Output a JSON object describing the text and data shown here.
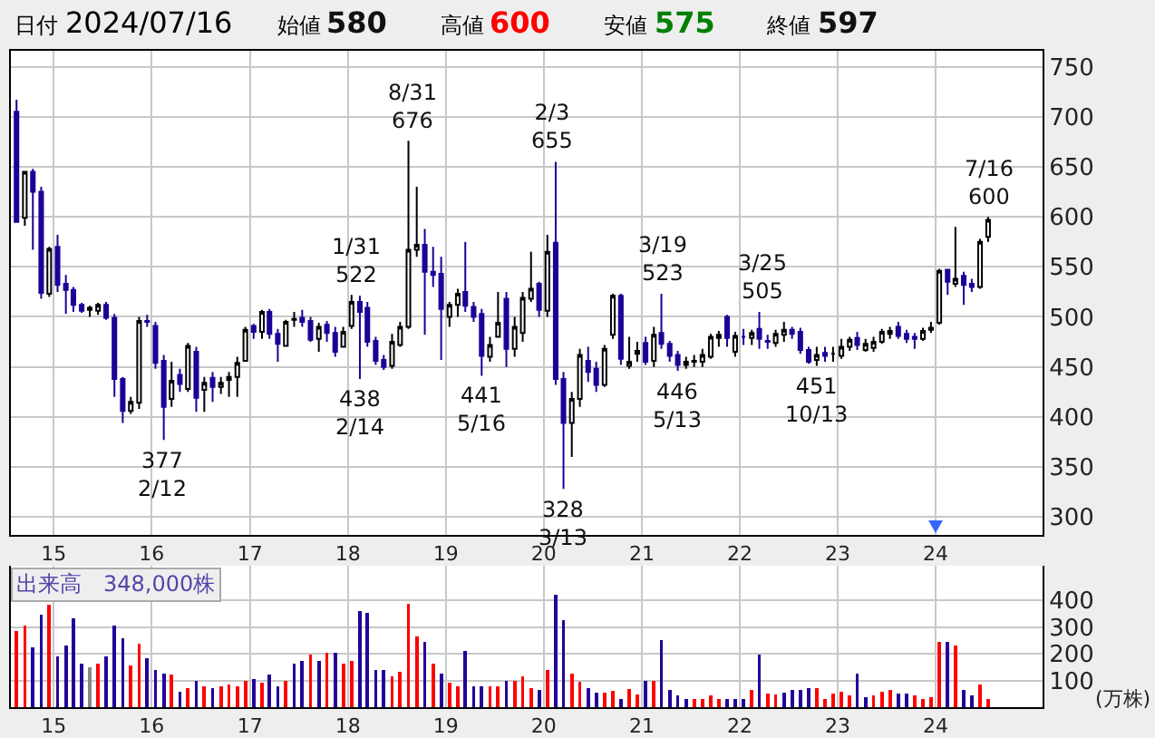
{
  "chart_data": [
    {
      "type": "candlestick",
      "annotations": [
        "日付",
        "2024/07/16",
        "始値",
        "580",
        "高値",
        "600",
        "安値",
        "575",
        "終値",
        "597",
        {
          "text": "8/31\n676",
          "x": "2018-08-31",
          "y": 676
        },
        {
          "text": "2/3\n655",
          "x": "2020-02-03",
          "y": 655
        },
        {
          "text": "1/31\n522",
          "x": "2018-01-31",
          "y": 522
        },
        {
          "text": "3/19\n523",
          "x": "2021-03-19",
          "y": 523
        },
        {
          "text": "3/25\n505",
          "x": "2022-03-25",
          "y": 505
        },
        {
          "text": "7/16\n600",
          "x": "2024-07-16",
          "y": 600
        },
        {
          "text": "377\n2/12",
          "x": "2016-02-12",
          "y": 377
        },
        {
          "text": "438\n2/14",
          "x": "2018-02-14",
          "y": 438
        },
        {
          "text": "441\n5/16",
          "x": "2019-05-16",
          "y": 441
        },
        {
          "text": "328\n3/13",
          "x": "2020-03-13",
          "y": 328
        },
        {
          "text": "446\n5/13",
          "x": "2021-05-13",
          "y": 446
        },
        {
          "text": "451\n10/13",
          "x": "2022-10-13",
          "y": 451
        }
      ],
      "x": [
        "2014-08-15",
        "2014-09-15",
        "2014-10-15",
        "2014-11-15",
        "2014-12-15",
        "2015-01-15",
        "2015-02-15",
        "2015-03-15",
        "2015-04-15",
        "2015-05-15",
        "2015-06-15",
        "2015-07-15",
        "2015-08-15",
        "2015-09-15",
        "2015-10-15",
        "2015-11-15",
        "2015-12-15",
        "2016-01-15",
        "2016-02-15",
        "2016-03-15",
        "2016-04-15",
        "2016-05-15",
        "2016-06-15",
        "2016-07-15",
        "2016-08-15",
        "2016-09-15",
        "2016-10-15",
        "2016-11-15",
        "2016-12-15",
        "2017-01-15",
        "2017-02-15",
        "2017-03-15",
        "2017-04-15",
        "2017-05-15",
        "2017-06-15",
        "2017-07-15",
        "2017-08-15",
        "2017-09-15",
        "2017-10-15",
        "2017-11-15",
        "2017-12-15",
        "2018-01-15",
        "2018-02-15",
        "2018-03-15",
        "2018-04-15",
        "2018-05-15",
        "2018-06-15",
        "2018-07-15",
        "2018-08-15",
        "2018-09-15",
        "2018-10-15",
        "2018-11-15",
        "2018-12-15",
        "2019-01-15",
        "2019-02-15",
        "2019-03-15",
        "2019-04-15",
        "2019-05-15",
        "2019-06-15",
        "2019-07-15",
        "2019-08-15",
        "2019-09-15",
        "2019-10-15",
        "2019-11-15",
        "2019-12-15",
        "2020-01-15",
        "2020-02-15",
        "2020-03-15",
        "2020-04-15",
        "2020-05-15",
        "2020-06-15",
        "2020-07-15",
        "2020-08-15",
        "2020-09-15",
        "2020-10-15",
        "2020-11-15",
        "2020-12-15",
        "2021-01-15",
        "2021-02-15",
        "2021-03-15",
        "2021-04-15",
        "2021-05-15",
        "2021-06-15",
        "2021-07-15",
        "2021-08-15",
        "2021-09-15",
        "2021-10-15",
        "2021-11-15",
        "2021-12-15",
        "2022-01-15",
        "2022-02-15",
        "2022-03-15",
        "2022-04-15",
        "2022-05-15",
        "2022-06-15",
        "2022-07-15",
        "2022-08-15",
        "2022-09-15",
        "2022-10-15",
        "2022-11-15",
        "2022-12-15",
        "2023-01-15",
        "2023-02-15",
        "2023-03-15",
        "2023-04-15",
        "2023-05-15",
        "2023-06-15",
        "2023-07-15",
        "2023-08-15",
        "2023-09-15",
        "2023-10-15",
        "2023-11-15",
        "2023-12-15",
        "2024-01-15",
        "2024-02-15",
        "2024-03-15",
        "2024-04-15",
        "2024-05-15",
        "2024-06-15",
        "2024-07-15"
      ],
      "ohlc": [
        [
          705,
          717,
          594,
          595
        ],
        [
          599,
          646,
          591,
          645
        ],
        [
          645,
          648,
          567,
          625
        ],
        [
          625,
          630,
          518,
          524
        ],
        [
          523,
          570,
          520,
          568
        ],
        [
          570,
          582,
          525,
          532
        ],
        [
          533,
          542,
          503,
          527
        ],
        [
          527,
          530,
          505,
          512
        ],
        [
          512,
          514,
          504,
          506
        ],
        [
          507,
          511,
          500,
          509
        ],
        [
          506,
          514,
          502,
          512
        ],
        [
          512,
          515,
          497,
          499
        ],
        [
          499,
          503,
          420,
          438
        ],
        [
          438,
          440,
          394,
          406
        ],
        [
          406,
          420,
          403,
          415
        ],
        [
          414,
          500,
          408,
          496
        ],
        [
          496,
          502,
          490,
          495
        ],
        [
          491,
          495,
          448,
          454
        ],
        [
          456,
          462,
          377,
          410
        ],
        [
          418,
          455,
          410,
          436
        ],
        [
          442,
          448,
          425,
          433
        ],
        [
          428,
          474,
          425,
          471
        ],
        [
          465,
          470,
          405,
          419
        ],
        [
          427,
          440,
          405,
          434
        ],
        [
          439,
          445,
          415,
          430
        ],
        [
          430,
          440,
          423,
          434
        ],
        [
          437,
          445,
          420,
          440
        ],
        [
          440,
          460,
          420,
          454
        ],
        [
          456,
          490,
          455,
          487
        ],
        [
          491,
          493,
          478,
          485
        ],
        [
          485,
          507,
          478,
          505
        ],
        [
          505,
          508,
          478,
          483
        ],
        [
          483,
          488,
          455,
          473
        ],
        [
          471,
          497,
          470,
          495
        ],
        [
          497,
          505,
          490,
          498
        ],
        [
          499,
          507,
          490,
          495
        ],
        [
          496,
          500,
          475,
          477
        ],
        [
          478,
          494,
          465,
          490
        ],
        [
          492,
          496,
          475,
          484
        ],
        [
          484,
          490,
          460,
          465
        ],
        [
          470,
          490,
          470,
          485
        ],
        [
          491,
          522,
          488,
          515
        ],
        [
          515,
          521,
          438,
          505
        ],
        [
          509,
          515,
          470,
          475
        ],
        [
          476,
          480,
          452,
          456
        ],
        [
          457,
          462,
          447,
          450
        ],
        [
          451,
          483,
          448,
          475
        ],
        [
          472,
          495,
          470,
          490
        ],
        [
          490,
          676,
          488,
          567
        ],
        [
          567,
          630,
          560,
          572
        ],
        [
          572,
          588,
          482,
          545
        ],
        [
          545,
          570,
          530,
          542
        ],
        [
          543,
          560,
          457,
          508
        ],
        [
          500,
          515,
          490,
          512
        ],
        [
          512,
          528,
          500,
          523
        ],
        [
          525,
          575,
          505,
          511
        ],
        [
          510,
          515,
          495,
          500
        ],
        [
          503,
          508,
          441,
          461
        ],
        [
          460,
          480,
          455,
          472
        ],
        [
          480,
          525,
          480,
          494
        ],
        [
          518,
          525,
          450,
          468
        ],
        [
          468,
          500,
          460,
          490
        ],
        [
          484,
          525,
          475,
          519
        ],
        [
          518,
          565,
          515,
          528
        ],
        [
          533,
          535,
          500,
          507
        ],
        [
          506,
          582,
          500,
          565
        ],
        [
          574,
          655,
          432,
          438
        ],
        [
          438,
          445,
          328,
          394
        ],
        [
          394,
          425,
          360,
          418
        ],
        [
          418,
          468,
          410,
          462
        ],
        [
          456,
          470,
          435,
          445
        ],
        [
          448,
          455,
          425,
          432
        ],
        [
          432,
          472,
          430,
          468
        ],
        [
          482,
          523,
          478,
          521
        ],
        [
          521,
          523,
          452,
          458
        ],
        [
          451,
          480,
          448,
          455
        ],
        [
          463,
          475,
          455,
          466
        ],
        [
          474,
          480,
          452,
          455
        ],
        [
          456,
          490,
          450,
          482
        ],
        [
          484,
          523,
          468,
          473
        ],
        [
          473,
          476,
          455,
          461
        ],
        [
          462,
          466,
          446,
          452
        ],
        [
          452,
          460,
          448,
          455
        ],
        [
          455,
          462,
          450,
          456
        ],
        [
          455,
          468,
          450,
          462
        ],
        [
          460,
          483,
          458,
          480
        ],
        [
          479,
          486,
          470,
          482
        ],
        [
          500,
          502,
          470,
          479
        ],
        [
          465,
          485,
          460,
          481
        ],
        [
          480,
          488,
          472,
          480
        ],
        [
          479,
          487,
          472,
          484
        ],
        [
          488,
          505,
          468,
          478
        ],
        [
          476,
          482,
          468,
          475
        ],
        [
          474,
          487,
          470,
          483
        ],
        [
          482,
          495,
          475,
          487
        ],
        [
          487,
          490,
          478,
          483
        ],
        [
          485,
          489,
          463,
          467
        ],
        [
          467,
          470,
          453,
          455
        ],
        [
          457,
          470,
          451,
          462
        ],
        [
          464,
          470,
          455,
          461
        ],
        [
          463,
          470,
          455,
          463
        ],
        [
          461,
          478,
          458,
          470
        ],
        [
          470,
          480,
          466,
          477
        ],
        [
          479,
          485,
          467,
          472
        ],
        [
          467,
          478,
          465,
          473
        ],
        [
          469,
          480,
          465,
          475
        ],
        [
          475,
          488,
          473,
          485
        ],
        [
          483,
          490,
          478,
          486
        ],
        [
          490,
          495,
          478,
          481
        ],
        [
          483,
          487,
          474,
          478
        ],
        [
          480,
          484,
          468,
          478
        ],
        [
          478,
          489,
          476,
          486
        ],
        [
          487,
          495,
          484,
          489
        ],
        [
          494,
          548,
          492,
          546
        ],
        [
          547,
          548,
          522,
          535
        ],
        [
          533,
          590,
          530,
          538
        ],
        [
          541,
          545,
          512,
          532
        ],
        [
          533,
          538,
          525,
          530
        ],
        [
          530,
          578,
          528,
          575
        ],
        [
          580,
          600,
          575,
          597
        ]
      ],
      "xlim": [
        "2014-07-25",
        "2025-02-03"
      ],
      "xticks": [
        {
          "value": "2015-01-01",
          "label": "15"
        },
        {
          "value": "2016-01-01",
          "label": "16"
        },
        {
          "value": "2017-01-01",
          "label": "17"
        },
        {
          "value": "2018-01-01",
          "label": "18"
        },
        {
          "value": "2019-01-01",
          "label": "19"
        },
        {
          "value": "2020-01-01",
          "label": "20"
        },
        {
          "value": "2021-01-01",
          "label": "21"
        },
        {
          "value": "2022-01-01",
          "label": "22"
        },
        {
          "value": "2023-01-01",
          "label": "23"
        },
        {
          "value": "2024-01-01",
          "label": "24"
        }
      ],
      "ylim": [
        282,
        766
      ],
      "yticks": [
        300,
        350,
        400,
        450,
        500,
        550,
        600,
        650,
        700,
        750
      ],
      "grid": true
    },
    {
      "type": "bar",
      "annotations": [
        "出来高　348,000株"
      ],
      "ylabel": "(万株)",
      "x": [
        "2014-08-15",
        "2014-09-15",
        "2014-10-15",
        "2014-11-15",
        "2014-12-15",
        "2015-01-15",
        "2015-02-15",
        "2015-03-15",
        "2015-04-15",
        "2015-05-15",
        "2015-06-15",
        "2015-07-15",
        "2015-08-15",
        "2015-09-15",
        "2015-10-15",
        "2015-11-15",
        "2015-12-15",
        "2016-01-15",
        "2016-02-15",
        "2016-03-15",
        "2016-04-15",
        "2016-05-15",
        "2016-06-15",
        "2016-07-15",
        "2016-08-15",
        "2016-09-15",
        "2016-10-15",
        "2016-11-15",
        "2016-12-15",
        "2017-01-15",
        "2017-02-15",
        "2017-03-15",
        "2017-04-15",
        "2017-05-15",
        "2017-06-15",
        "2017-07-15",
        "2017-08-15",
        "2017-09-15",
        "2017-10-15",
        "2017-11-15",
        "2017-12-15",
        "2018-01-15",
        "2018-02-15",
        "2018-03-15",
        "2018-04-15",
        "2018-05-15",
        "2018-06-15",
        "2018-07-15",
        "2018-08-15",
        "2018-09-15",
        "2018-10-15",
        "2018-11-15",
        "2018-12-15",
        "2019-01-15",
        "2019-02-15",
        "2019-03-15",
        "2019-04-15",
        "2019-05-15",
        "2019-06-15",
        "2019-07-15",
        "2019-08-15",
        "2019-09-15",
        "2019-10-15",
        "2019-11-15",
        "2019-12-15",
        "2020-01-15",
        "2020-02-15",
        "2020-03-15",
        "2020-04-15",
        "2020-05-15",
        "2020-06-15",
        "2020-07-15",
        "2020-08-15",
        "2020-09-15",
        "2020-10-15",
        "2020-11-15",
        "2020-12-15",
        "2021-01-15",
        "2021-02-15",
        "2021-03-15",
        "2021-04-15",
        "2021-05-15",
        "2021-06-15",
        "2021-07-15",
        "2021-08-15",
        "2021-09-15",
        "2021-10-15",
        "2021-11-15",
        "2021-12-15",
        "2022-01-15",
        "2022-02-15",
        "2022-03-15",
        "2022-04-15",
        "2022-05-15",
        "2022-06-15",
        "2022-07-15",
        "2022-08-15",
        "2022-09-15",
        "2022-10-15",
        "2022-11-15",
        "2022-12-15",
        "2023-01-15",
        "2023-02-15",
        "2023-03-15",
        "2023-04-15",
        "2023-05-15",
        "2023-06-15",
        "2023-07-15",
        "2023-08-15",
        "2023-09-15",
        "2023-10-15",
        "2023-11-15",
        "2023-12-15",
        "2024-01-15",
        "2024-02-15",
        "2024-03-15",
        "2024-04-15",
        "2024-05-15",
        "2024-06-15",
        "2024-07-15"
      ],
      "values": [
        285,
        306,
        224,
        347,
        384,
        191,
        230,
        333,
        162,
        148,
        162,
        189,
        306,
        258,
        155,
        237,
        182,
        141,
        127,
        123,
        59,
        72,
        100,
        79,
        72,
        79,
        86,
        79,
        100,
        107,
        93,
        121,
        79,
        100,
        162,
        175,
        196,
        175,
        203,
        203,
        162,
        175,
        361,
        354,
        141,
        141,
        114,
        134,
        388,
        265,
        244,
        162,
        127,
        93,
        79,
        210,
        79,
        79,
        79,
        79,
        100,
        100,
        114,
        72,
        66,
        141,
        423,
        327,
        127,
        95,
        72,
        54,
        54,
        61,
        31,
        68,
        47,
        100,
        100,
        251,
        66,
        45,
        31,
        31,
        31,
        45,
        31,
        31,
        31,
        31,
        66,
        198,
        52,
        47,
        54,
        66,
        66,
        72,
        72,
        31,
        52,
        59,
        45,
        127,
        38,
        45,
        59,
        66,
        52,
        52,
        45,
        31,
        38,
        244,
        244,
        230,
        66,
        45,
        86,
        31
      ],
      "colors": [
        "#ff0000",
        "#ff0000",
        "#220099",
        "#220099",
        "#ff0000",
        "#220099",
        "#220099",
        "#220099",
        "#220099",
        "#888888",
        "#ff0000",
        "#220099",
        "#220099",
        "#220099",
        "#ff0000",
        "#ff0000",
        "#220099",
        "#220099",
        "#220099",
        "#ff0000",
        "#220099",
        "#ff0000",
        "#220099",
        "#ff0000",
        "#220099",
        "#ff0000",
        "#ff0000",
        "#ff0000",
        "#ff0000",
        "#220099",
        "#ff0000",
        "#220099",
        "#220099",
        "#ff0000",
        "#220099",
        "#220099",
        "#ff0000",
        "#220099",
        "#ff0000",
        "#220099",
        "#ff0000",
        "#ff0000",
        "#220099",
        "#220099",
        "#220099",
        "#220099",
        "#ff0000",
        "#ff0000",
        "#ff0000",
        "#ff0000",
        "#220099",
        "#ff0000",
        "#220099",
        "#ff0000",
        "#ff0000",
        "#220099",
        "#220099",
        "#220099",
        "#ff0000",
        "#ff0000",
        "#220099",
        "#ff0000",
        "#ff0000",
        "#ff0000",
        "#220099",
        "#ff0000",
        "#220099",
        "#220099",
        "#ff0000",
        "#ff0000",
        "#220099",
        "#220099",
        "#ff0000",
        "#ff0000",
        "#220099",
        "#ff0000",
        "#ff0000",
        "#220099",
        "#ff0000",
        "#220099",
        "#220099",
        "#220099",
        "#220099",
        "#ff0000",
        "#ff0000",
        "#ff0000",
        "#ff0000",
        "#220099",
        "#220099",
        "#220099",
        "#ff0000",
        "#220099",
        "#ff0000",
        "#ff0000",
        "#220099",
        "#220099",
        "#220099",
        "#220099",
        "#ff0000",
        "#ff0000",
        "#ff0000",
        "#ff0000",
        "#ff0000",
        "#220099",
        "#220099",
        "#ff0000",
        "#ff0000",
        "#ff0000",
        "#220099",
        "#220099",
        "#ff0000",
        "#ff0000",
        "#ff0000",
        "#ff0000",
        "#220099",
        "#ff0000",
        "#220099",
        "#220099",
        "#ff0000",
        "#ff0000"
      ],
      "xlim": [
        "2014-07-25",
        "2025-02-03"
      ],
      "xticks": [
        {
          "value": "2015-01-01",
          "label": "15"
        },
        {
          "value": "2016-01-01",
          "label": "16"
        },
        {
          "value": "2017-01-01",
          "label": "17"
        },
        {
          "value": "2018-01-01",
          "label": "18"
        },
        {
          "value": "2019-01-01",
          "label": "19"
        },
        {
          "value": "2020-01-01",
          "label": "20"
        },
        {
          "value": "2021-01-01",
          "label": "21"
        },
        {
          "value": "2022-01-01",
          "label": "22"
        },
        {
          "value": "2023-01-01",
          "label": "23"
        },
        {
          "value": "2024-01-01",
          "label": "24"
        }
      ],
      "ylim": [
        0,
        530
      ],
      "yticks": [
        100,
        200,
        300,
        400
      ],
      "grid": true
    }
  ]
}
